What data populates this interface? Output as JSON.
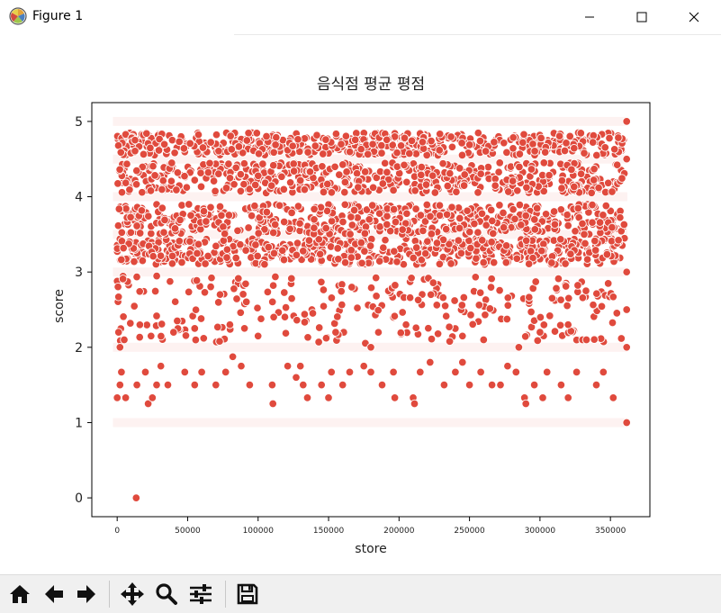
{
  "window": {
    "title": "Figure 1"
  },
  "toolbar": {
    "buttons": [
      "home-icon",
      "back-icon",
      "forward-icon",
      "pan-icon",
      "zoom-icon",
      "configure-subplots-icon",
      "save-icon"
    ]
  },
  "chart_data": {
    "type": "scatter",
    "title": "음식점 평균 평점",
    "xlabel": "store",
    "ylabel": "score",
    "xlim": [
      -18000,
      378000
    ],
    "ylim": [
      -0.25,
      5.25
    ],
    "xticks": [
      0,
      50000,
      100000,
      150000,
      200000,
      250000,
      300000,
      350000
    ],
    "yticks": [
      0,
      1,
      2,
      3,
      4,
      5
    ],
    "grid": false,
    "legend": "none",
    "marker_color": "#e04a3d",
    "marker_edge": "#ffffff",
    "series": [
      {
        "points": [
          [
            13500,
            0.0
          ],
          [
            0,
            1.33
          ],
          [
            2000,
            1.5
          ],
          [
            3000,
            1.67
          ],
          [
            6000,
            1.33
          ],
          [
            14000,
            1.5
          ],
          [
            20000,
            1.67
          ],
          [
            22000,
            1.25
          ],
          [
            25000,
            1.33
          ],
          [
            28000,
            1.5
          ],
          [
            31000,
            1.75
          ],
          [
            36000,
            1.5
          ],
          [
            48000,
            1.67
          ],
          [
            55000,
            1.5
          ],
          [
            60000,
            1.67
          ],
          [
            70000,
            1.5
          ],
          [
            77000,
            1.67
          ],
          [
            82000,
            1.875
          ],
          [
            88000,
            1.75
          ],
          [
            94000,
            1.5
          ],
          [
            110000,
            1.5
          ],
          [
            110500,
            1.25
          ],
          [
            121000,
            1.75
          ],
          [
            127000,
            1.6
          ],
          [
            130000,
            1.75
          ],
          [
            132000,
            1.5
          ],
          [
            135000,
            1.33
          ],
          [
            145000,
            1.5
          ],
          [
            150000,
            1.33
          ],
          [
            152000,
            1.67
          ],
          [
            160000,
            1.5
          ],
          [
            165000,
            1.67
          ],
          [
            175000,
            1.75
          ],
          [
            180000,
            1.67
          ],
          [
            188000,
            1.5
          ],
          [
            196000,
            1.67
          ],
          [
            197000,
            1.33
          ],
          [
            210000,
            1.33
          ],
          [
            211000,
            1.25
          ],
          [
            215000,
            1.67
          ],
          [
            222000,
            1.8
          ],
          [
            232000,
            1.5
          ],
          [
            240000,
            1.67
          ],
          [
            245000,
            1.8
          ],
          [
            250000,
            1.5
          ],
          [
            258000,
            1.67
          ],
          [
            266000,
            1.5
          ],
          [
            272000,
            1.5
          ],
          [
            277000,
            1.75
          ],
          [
            283000,
            1.67
          ],
          [
            289000,
            1.33
          ],
          [
            290000,
            1.25
          ],
          [
            296000,
            1.5
          ],
          [
            302000,
            1.33
          ],
          [
            305000,
            1.67
          ],
          [
            315000,
            1.5
          ],
          [
            320000,
            1.33
          ],
          [
            326000,
            1.67
          ],
          [
            333000,
            2.1
          ],
          [
            340000,
            1.5
          ],
          [
            345000,
            1.67
          ],
          [
            352000,
            1.33
          ],
          [
            361500,
            1.0
          ],
          [
            361500,
            2.0
          ],
          [
            361500,
            2.5
          ],
          [
            361500,
            3.0
          ],
          [
            361500,
            4.5
          ],
          [
            361500,
            5.0
          ],
          [
            1000,
            2.2
          ],
          [
            5000,
            2.1
          ],
          [
            24000,
            2.15
          ],
          [
            40000,
            2.2
          ],
          [
            55000,
            2.25
          ],
          [
            80000,
            2.3
          ],
          [
            100000,
            2.15
          ],
          [
            155000,
            2.2
          ],
          [
            205000,
            2.3
          ],
          [
            245000,
            2.15
          ],
          [
            260000,
            2.1
          ],
          [
            300000,
            2.2
          ],
          [
            320000,
            2.3
          ],
          [
            1000,
            2.67
          ],
          [
            2000,
            2.0
          ],
          [
            180000,
            2.0
          ],
          [
            285000,
            2.0
          ],
          [
            352000,
            2.67
          ]
        ]
      }
    ],
    "bands": [
      {
        "y": [
          2.05,
          2.95
        ],
        "density": "dense-with-gaps"
      },
      {
        "y": [
          3.1,
          3.45
        ],
        "density": "very-dense"
      },
      {
        "y": [
          3.5,
          3.9
        ],
        "density": "very-dense"
      },
      {
        "y": [
          4.05,
          4.45
        ],
        "density": "very-dense"
      },
      {
        "y": [
          4.55,
          4.85
        ],
        "density": "very-dense"
      }
    ],
    "strips": [
      1.0,
      2.0,
      3.0,
      3.5,
      4.0,
      4.5,
      5.0
    ]
  }
}
